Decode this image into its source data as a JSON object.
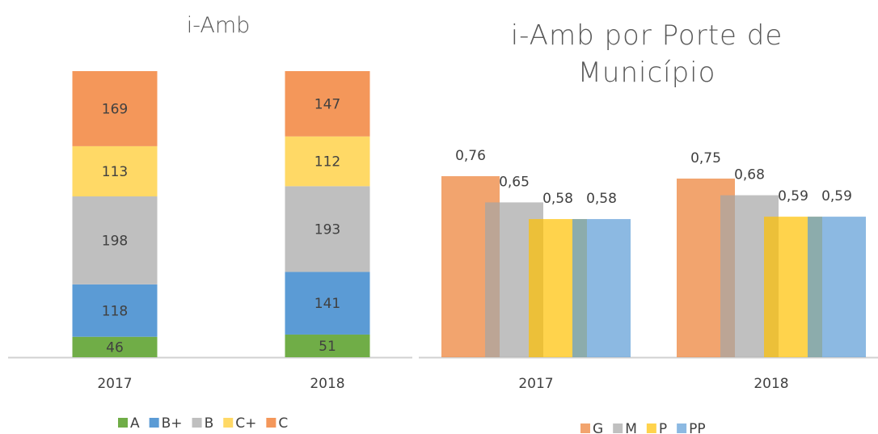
{
  "chart_data": [
    {
      "type": "bar",
      "stacked": true,
      "title": "i-Amb",
      "categories": [
        "2017",
        "2018"
      ],
      "series": [
        {
          "name": "A",
          "color": "#70ad47",
          "values": [
            46,
            51
          ]
        },
        {
          "name": "B+",
          "color": "#5b9bd5",
          "values": [
            118,
            141
          ]
        },
        {
          "name": "B",
          "color": "#bfbfbf",
          "values": [
            198,
            193
          ]
        },
        {
          "name": "C+",
          "color": "#ffd966",
          "values": [
            113,
            112
          ]
        },
        {
          "name": "C",
          "color": "#f4975a",
          "values": [
            169,
            147
          ]
        }
      ],
      "legend": "bottom"
    },
    {
      "type": "bar",
      "stacked": false,
      "title": "i-Amb por Porte de Município",
      "categories": [
        "2017",
        "2018"
      ],
      "series": [
        {
          "name": "G",
          "color": "#ed7d31",
          "values": [
            0.76,
            0.75
          ],
          "value_labels": [
            "0,76",
            "0,75"
          ]
        },
        {
          "name": "M",
          "color": "#a5a5a5",
          "values": [
            0.65,
            0.68
          ],
          "value_labels": [
            "0,65",
            "0,68"
          ]
        },
        {
          "name": "P",
          "color": "#ffc000",
          "values": [
            0.58,
            0.59
          ],
          "value_labels": [
            "0,58",
            "0,59"
          ]
        },
        {
          "name": "PP",
          "color": "#5b9bd5",
          "values": [
            0.58,
            0.59
          ],
          "value_labels": [
            "0,58",
            "0,59"
          ]
        }
      ],
      "legend": "bottom"
    }
  ]
}
